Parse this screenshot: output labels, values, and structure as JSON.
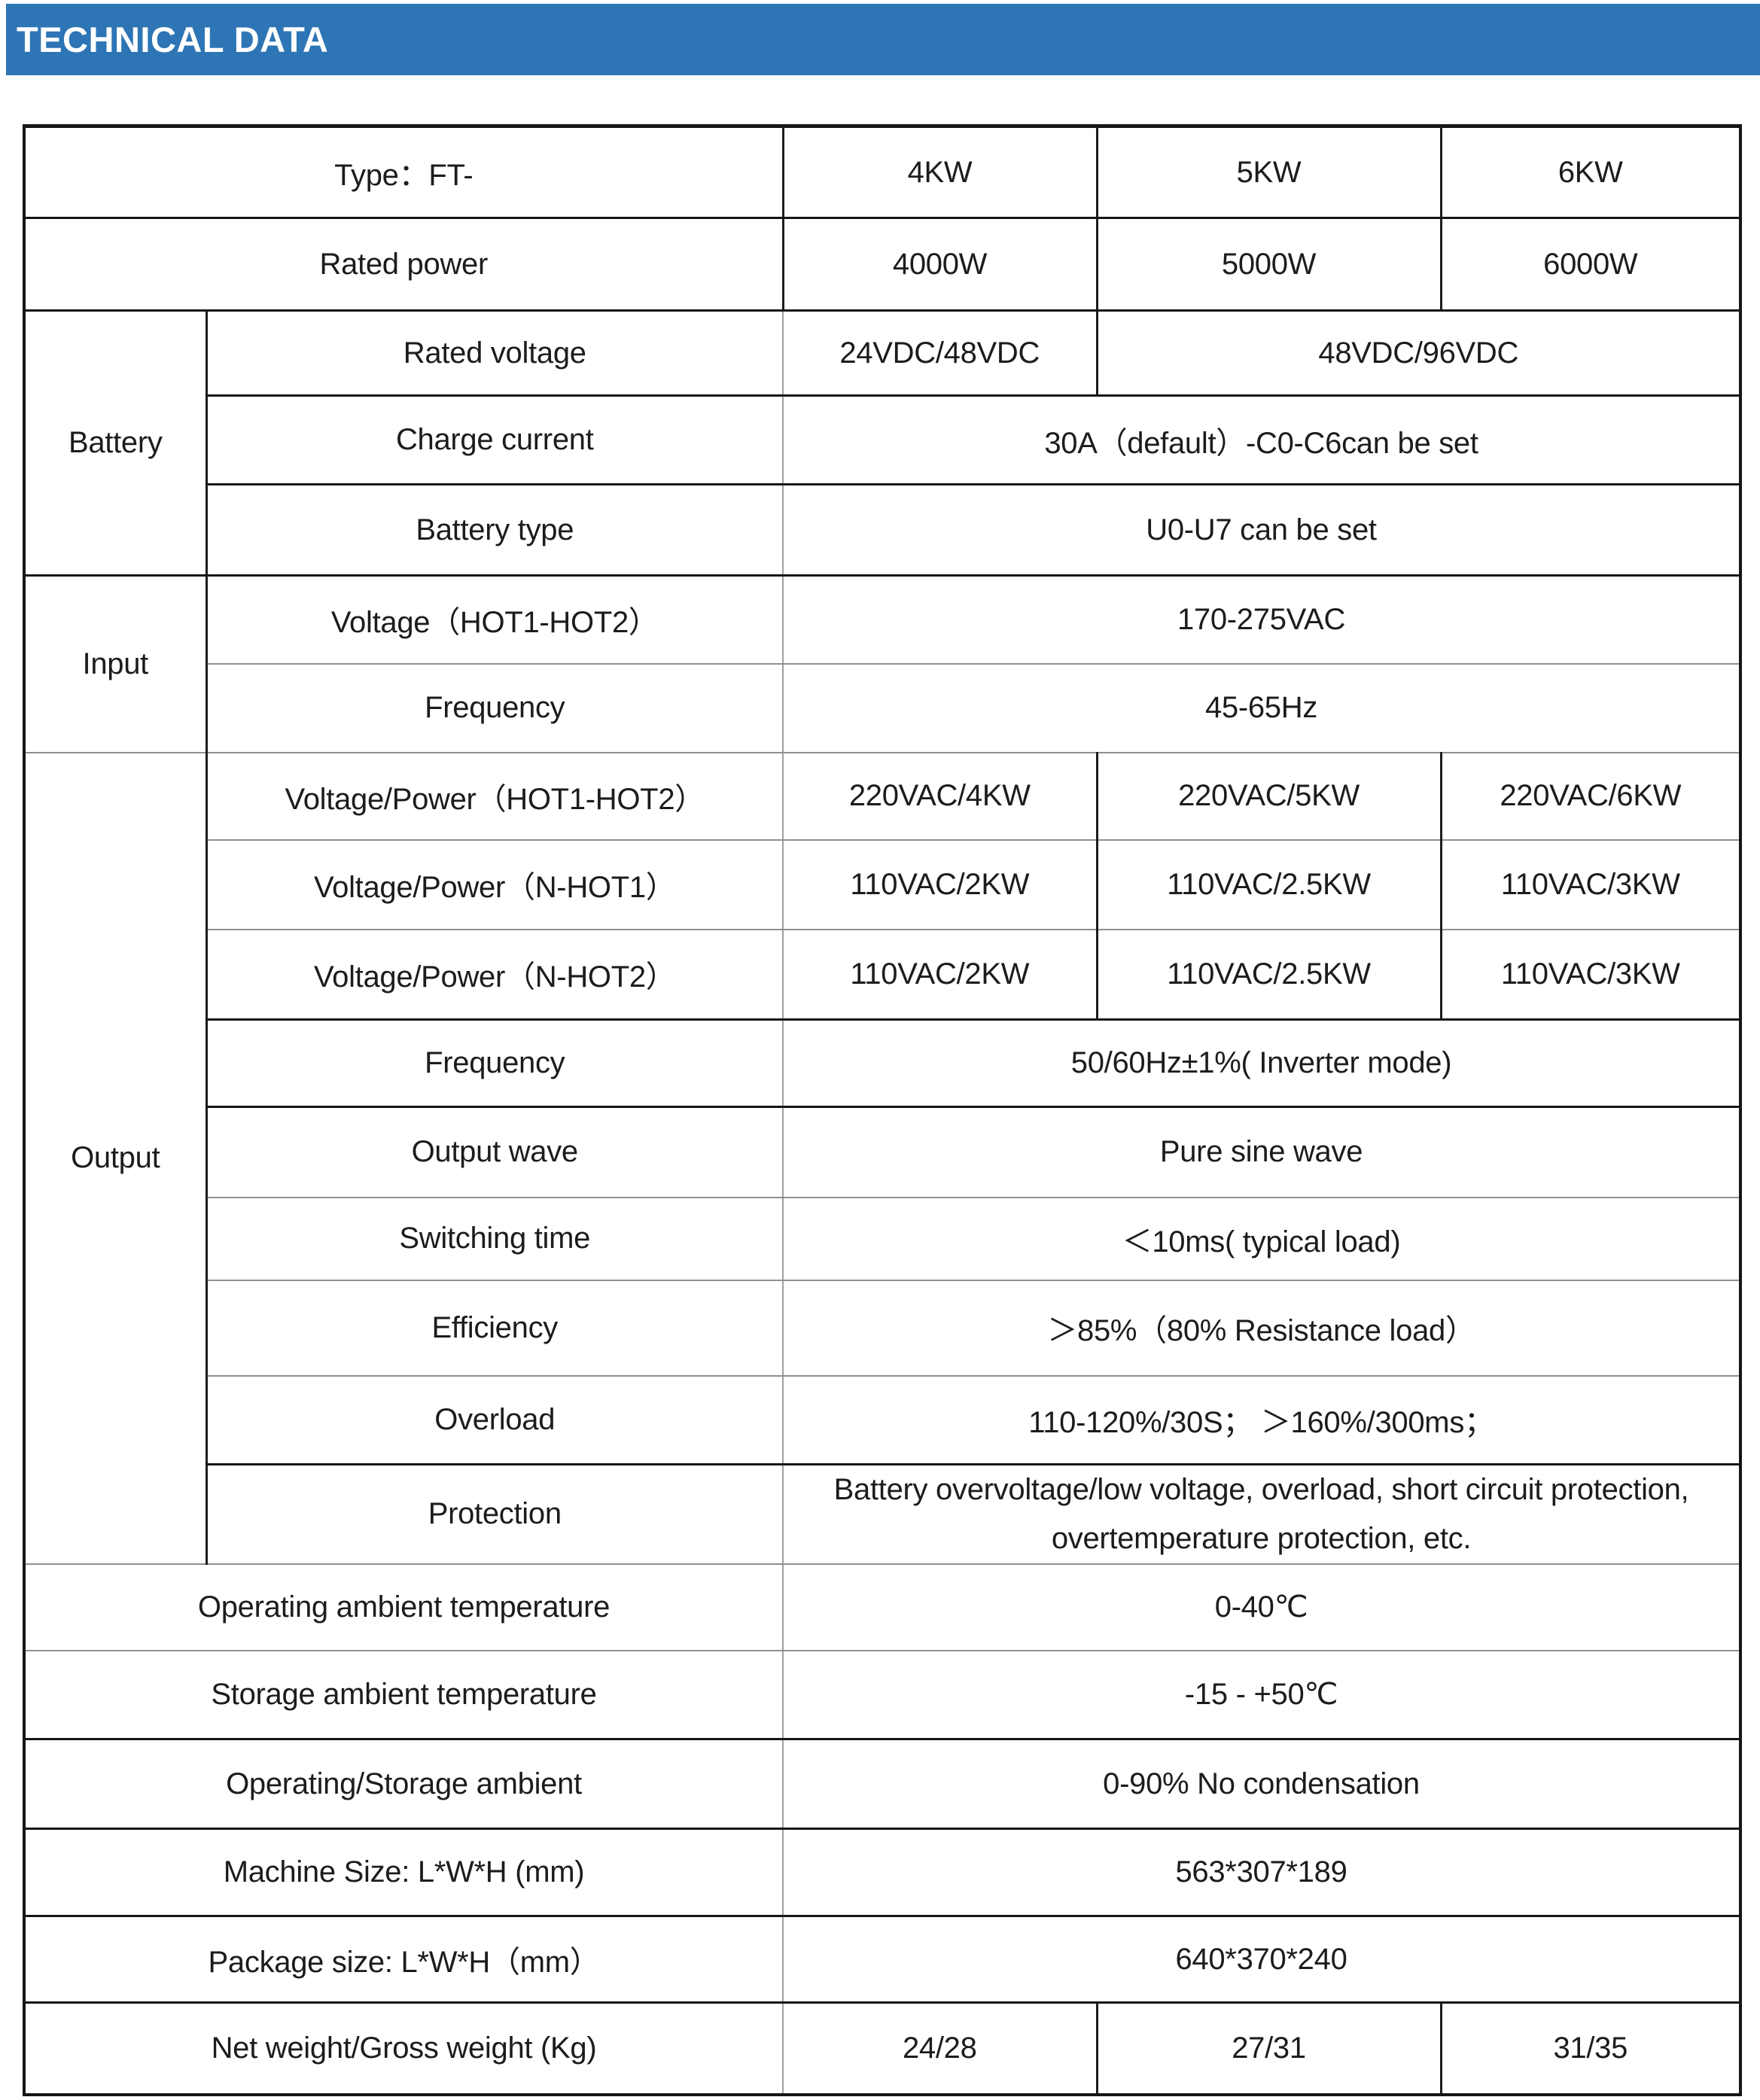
{
  "header": {
    "title": "TECHNICAL DATA",
    "bar_color": "#2E75B6",
    "text_color": "#ffffff"
  },
  "table": {
    "rows": [
      {
        "h": 122,
        "rule": "s",
        "cells": [
          {
            "t": "Type：FT-",
            "cs": 2,
            "name": "row-label"
          },
          {
            "t": "4KW",
            "bl": "d",
            "name": "column-header"
          },
          {
            "t": "5KW",
            "bl": "d",
            "name": "column-header"
          },
          {
            "t": "6KW",
            "bl": "d",
            "name": "column-header"
          }
        ]
      },
      {
        "h": 123,
        "rule": "s",
        "cells": [
          {
            "t": "Rated power",
            "cs": 2,
            "name": "row-label"
          },
          {
            "t": "4000W",
            "bl": "d"
          },
          {
            "t": "5000W",
            "bl": "d"
          },
          {
            "t": "6000W",
            "bl": "d"
          }
        ]
      },
      {
        "h": 113,
        "rule": "s",
        "cells": [
          {
            "t": "Battery",
            "rs": 3,
            "name": "section-label"
          },
          {
            "t": "Rated voltage",
            "bl": "d",
            "name": "row-label"
          },
          {
            "t": "24VDC/48VDC",
            "bl": "l"
          },
          {
            "t": "48VDC/96VDC",
            "cs": 2,
            "bl": "d"
          }
        ]
      },
      {
        "h": 118,
        "rule": "s",
        "cells": [
          {
            "t": "Charge current",
            "bl": "d",
            "name": "row-label"
          },
          {
            "t": "30A（default）-C0-C6can be set",
            "cs": 3,
            "bl": "l"
          }
        ]
      },
      {
        "h": 121,
        "rule": "s",
        "cells": [
          {
            "t": "Battery type",
            "bl": "d",
            "name": "row-label"
          },
          {
            "t": "U0-U7 can be set",
            "cs": 3,
            "bl": "l"
          }
        ]
      },
      {
        "h": 117,
        "rule": "l",
        "cells": [
          {
            "t": "Input",
            "rs": 2,
            "name": "section-label"
          },
          {
            "t": "Voltage（HOT1-HOT2）",
            "bl": "d",
            "name": "row-label"
          },
          {
            "t": "170-275VAC",
            "cs": 3,
            "bl": "l"
          }
        ]
      },
      {
        "h": 118,
        "rule": "l",
        "cells": [
          {
            "t": "Frequency",
            "bl": "d",
            "name": "row-label"
          },
          {
            "t": "45-65Hz",
            "cs": 3,
            "bl": "l"
          }
        ]
      },
      {
        "h": 116,
        "rule": "l",
        "cells": [
          {
            "t": "Output",
            "rs": 9,
            "name": "section-label"
          },
          {
            "t": "Voltage/Power（HOT1-HOT2）",
            "bl": "d",
            "name": "row-label"
          },
          {
            "t": "220VAC/4KW",
            "bl": "l"
          },
          {
            "t": "220VAC/5KW",
            "bl": "d"
          },
          {
            "t": "220VAC/6KW",
            "bl": "d"
          }
        ]
      },
      {
        "h": 119,
        "rule": "l",
        "cells": [
          {
            "t": "Voltage/Power（N-HOT1）",
            "bl": "d",
            "name": "row-label"
          },
          {
            "t": "110VAC/2KW",
            "bl": "l"
          },
          {
            "t": "110VAC/2.5KW",
            "bl": "d"
          },
          {
            "t": "110VAC/3KW",
            "bl": "d"
          }
        ]
      },
      {
        "h": 120,
        "rule": "s",
        "cells": [
          {
            "t": "Voltage/Power（N-HOT2）",
            "bl": "d",
            "name": "row-label"
          },
          {
            "t": "110VAC/2KW",
            "bl": "l"
          },
          {
            "t": "110VAC/2.5KW",
            "bl": "d"
          },
          {
            "t": "110VAC/3KW",
            "bl": "d"
          }
        ]
      },
      {
        "h": 116,
        "rule": "s",
        "cells": [
          {
            "t": "Frequency",
            "bl": "d",
            "name": "row-label"
          },
          {
            "t": "50/60Hz±1%( Inverter mode)",
            "cs": 3,
            "bl": "l"
          }
        ]
      },
      {
        "h": 120,
        "rule": "l",
        "cells": [
          {
            "t": "Output wave",
            "bl": "d",
            "name": "row-label"
          },
          {
            "t": "Pure sine wave",
            "cs": 3,
            "bl": "l"
          }
        ]
      },
      {
        "h": 110,
        "rule": "l",
        "cells": [
          {
            "t": "Switching time",
            "bl": "d",
            "name": "row-label"
          },
          {
            "t": "＜10ms( typical load)",
            "cs": 3,
            "bl": "l"
          }
        ]
      },
      {
        "h": 127,
        "rule": "l",
        "cells": [
          {
            "t": "Efficiency",
            "bl": "d",
            "name": "row-label"
          },
          {
            "t": "＞85%（80% Resistance load）",
            "cs": 3,
            "bl": "l"
          }
        ]
      },
      {
        "h": 118,
        "rule": "s",
        "cells": [
          {
            "t": "Overload",
            "bl": "d",
            "name": "row-label"
          },
          {
            "t": "110-120%/30S； ＞160%/300ms；",
            "cs": 3,
            "bl": "l"
          }
        ]
      },
      {
        "h": 132,
        "rule": "l",
        "cells": [
          {
            "t": "Protection",
            "bl": "d",
            "name": "row-label"
          },
          {
            "t": "Battery overvoltage/low voltage, overload, short circuit protection,\novertemperature protection, etc.",
            "cs": 3,
            "bl": "l",
            "wrap": true
          }
        ]
      },
      {
        "h": 115,
        "rule": "l",
        "cells": [
          {
            "t": "Operating ambient temperature",
            "cs": 2,
            "name": "row-label"
          },
          {
            "t": "0-40℃",
            "cs": 3,
            "bl": "l"
          }
        ]
      },
      {
        "h": 118,
        "rule": "s",
        "cells": [
          {
            "t": "Storage ambient temperature",
            "cs": 2,
            "sm": true,
            "name": "row-label"
          },
          {
            "t": "-15 - +50℃",
            "cs": 3,
            "bl": "l"
          }
        ]
      },
      {
        "h": 119,
        "rule": "s",
        "cells": [
          {
            "t": "Operating/Storage ambient",
            "cs": 2,
            "name": "row-label"
          },
          {
            "t": "0-90% No condensation",
            "cs": 3,
            "bl": "l"
          }
        ]
      },
      {
        "h": 116,
        "rule": "s",
        "cells": [
          {
            "t": "Machine Size: L*W*H (mm)",
            "cs": 2,
            "name": "row-label"
          },
          {
            "t": "563*307*189",
            "cs": 3,
            "bl": "l"
          }
        ]
      },
      {
        "h": 115,
        "rule": "s",
        "cells": [
          {
            "t": "Package size: L*W*H（mm）",
            "cs": 2,
            "name": "row-label"
          },
          {
            "t": "640*370*240",
            "cs": 3,
            "bl": "l"
          }
        ]
      },
      {
        "h": 122,
        "rule": "s",
        "cells": [
          {
            "t": "Net weight/Gross weight (Kg)",
            "cs": 2,
            "sm": true,
            "name": "row-label"
          },
          {
            "t": "24/28",
            "bl": "l"
          },
          {
            "t": "27/31",
            "bl": "d"
          },
          {
            "t": "31/35",
            "bl": "d"
          }
        ]
      }
    ]
  }
}
